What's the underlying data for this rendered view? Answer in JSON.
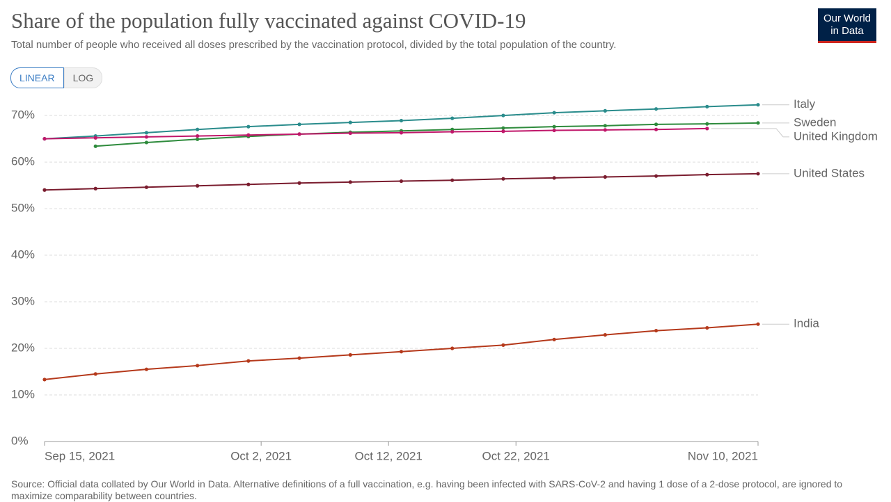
{
  "chart_data": {
    "type": "line",
    "title": "Share of the population fully vaccinated against COVID-19",
    "subtitle": "Total number of people who received all doses prescribed by the vaccination protocol, divided by the total population of the country.",
    "logo": [
      "Our World",
      "in Data"
    ],
    "scale_buttons": [
      "LINEAR",
      "LOG"
    ],
    "source": "Source: Official data collated by Our World in Data. Alternative definitions of a full vaccination, e.g. having been infected with SARS-CoV-2 and having 1 dose of a 2-dose protocol, are ignored to maximize comparability between countries.",
    "x": [
      "2021-09-15",
      "2021-09-19",
      "2021-09-23",
      "2021-09-27",
      "2021-10-01",
      "2021-10-05",
      "2021-10-09",
      "2021-10-13",
      "2021-10-17",
      "2021-10-21",
      "2021-10-25",
      "2021-10-29",
      "2021-11-02",
      "2021-11-06",
      "2021-11-10"
    ],
    "xlim": [
      "2021-09-15",
      "2021-11-10"
    ],
    "xticks": [
      {
        "value": "2021-09-15",
        "label": "Sep 15, 2021"
      },
      {
        "value": "2021-10-02",
        "label": "Oct 2, 2021"
      },
      {
        "value": "2021-10-12",
        "label": "Oct 12, 2021"
      },
      {
        "value": "2021-10-22",
        "label": "Oct 22, 2021"
      },
      {
        "value": "2021-11-10",
        "label": "Nov 10, 2021"
      }
    ],
    "ylim": [
      0,
      73
    ],
    "yticks": [
      {
        "value": 0,
        "label": "0%"
      },
      {
        "value": 10,
        "label": "10%"
      },
      {
        "value": 20,
        "label": "20%"
      },
      {
        "value": 30,
        "label": "30%"
      },
      {
        "value": 40,
        "label": "40%"
      },
      {
        "value": 50,
        "label": "50%"
      },
      {
        "value": 60,
        "label": "60%"
      },
      {
        "value": 70,
        "label": "70%"
      }
    ],
    "grid": true,
    "series": [
      {
        "name": "Italy",
        "color": "#2a8c8c",
        "values": [
          65,
          65.6,
          66.3,
          67,
          67.6,
          68.1,
          68.5,
          68.9,
          69.4,
          70,
          70.6,
          71,
          71.4,
          71.9,
          72.3
        ]
      },
      {
        "name": "Sweden",
        "color": "#2e8b3c",
        "values": [
          null,
          63.4,
          64.2,
          64.9,
          65.5,
          66,
          66.4,
          66.7,
          67,
          67.3,
          67.6,
          67.8,
          68.1,
          68.2,
          68.4
        ]
      },
      {
        "name": "United Kingdom",
        "color": "#c0176a",
        "values": [
          65,
          65.2,
          65.4,
          65.6,
          65.8,
          66,
          66.2,
          66.3,
          66.5,
          66.6,
          66.8,
          66.9,
          67,
          67.2,
          null
        ]
      },
      {
        "name": "United States",
        "color": "#7a1c2e",
        "values": [
          54,
          54.3,
          54.6,
          54.9,
          55.2,
          55.5,
          55.7,
          55.9,
          56.1,
          56.4,
          56.6,
          56.8,
          57,
          57.3,
          57.5
        ]
      },
      {
        "name": "India",
        "color": "#b5391b",
        "values": [
          13.3,
          14.5,
          15.5,
          16.3,
          17.3,
          17.9,
          18.6,
          19.3,
          20,
          20.7,
          21.9,
          22.9,
          23.8,
          24.4,
          25.2
        ]
      }
    ]
  }
}
